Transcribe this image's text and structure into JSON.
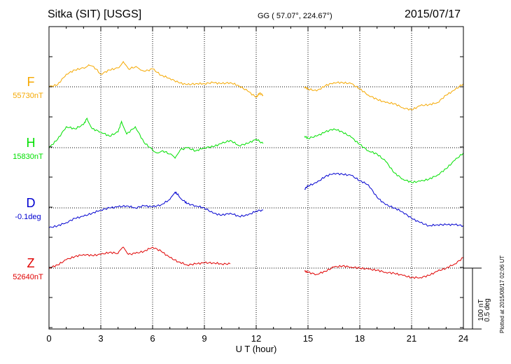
{
  "header": {
    "station": "Sitka (SIT)  [USGS]",
    "coords": "GG ( 57.07°, 224.67°)",
    "date": "2015/07/17"
  },
  "footer": {
    "plotted": "Plotted at 2015/08/17 02:06 UT"
  },
  "colors": {
    "F": "#f5a800",
    "H": "#00e000",
    "D": "#0000d0",
    "Z": "#e00000"
  },
  "chart_data": {
    "type": "line",
    "xlabel": "U T (hour)",
    "xlim": [
      0,
      24
    ],
    "xticks": [
      "0",
      "3",
      "6",
      "9",
      "12",
      "15",
      "18",
      "21",
      "24"
    ],
    "scale_bar": [
      "100 nT",
      "0.5 deg"
    ],
    "data_gap_hours": [
      12.4,
      14.8
    ],
    "series": [
      {
        "name": "F",
        "baseline": "55730nT",
        "values": [
          [
            [
              0,
              0
            ],
            [
              0.5,
              2
            ],
            [
              1,
              12
            ],
            [
              1.5,
              16
            ],
            [
              2,
              18
            ],
            [
              2.3,
              21
            ],
            [
              2.6,
              19
            ],
            [
              3,
              12
            ],
            [
              3.5,
              16
            ],
            [
              4,
              18
            ],
            [
              4.3,
              24
            ],
            [
              4.6,
              17
            ],
            [
              5,
              19
            ],
            [
              5.3,
              16
            ],
            [
              5.6,
              15
            ],
            [
              6,
              17
            ],
            [
              6.5,
              11
            ],
            [
              7,
              8
            ],
            [
              7.5,
              4
            ],
            [
              8,
              2
            ],
            [
              8.5,
              3
            ],
            [
              9,
              3
            ],
            [
              9.5,
              4
            ],
            [
              10,
              3
            ],
            [
              10.5,
              4
            ],
            [
              11,
              1
            ],
            [
              11.5,
              -4
            ],
            [
              12,
              -10
            ],
            [
              12.2,
              -6
            ],
            [
              12.4,
              -8
            ]
          ],
          [
            [
              14.8,
              0
            ],
            [
              15,
              -2
            ],
            [
              15.5,
              -4
            ],
            [
              16,
              1
            ],
            [
              16.5,
              4
            ],
            [
              17,
              4
            ],
            [
              17.5,
              3
            ],
            [
              18,
              -2
            ],
            [
              18.5,
              -8
            ],
            [
              19,
              -12
            ],
            [
              19.5,
              -15
            ],
            [
              20,
              -16
            ],
            [
              20.5,
              -20
            ],
            [
              21,
              -22
            ],
            [
              21.5,
              -18
            ],
            [
              22,
              -17
            ],
            [
              22.5,
              -15
            ],
            [
              23,
              -8
            ],
            [
              23.5,
              -3
            ],
            [
              24,
              3
            ]
          ]
        ]
      },
      {
        "name": "H",
        "baseline": "15830nT",
        "values": [
          [
            [
              0,
              0
            ],
            [
              0.5,
              8
            ],
            [
              1,
              20
            ],
            [
              1.5,
              18
            ],
            [
              2,
              22
            ],
            [
              2.2,
              28
            ],
            [
              2.5,
              18
            ],
            [
              3,
              15
            ],
            [
              3.5,
              11
            ],
            [
              4,
              15
            ],
            [
              4.2,
              25
            ],
            [
              4.5,
              13
            ],
            [
              5,
              20
            ],
            [
              5.5,
              5
            ],
            [
              6,
              -2
            ],
            [
              6.3,
              -5
            ],
            [
              6.6,
              -3
            ],
            [
              7,
              -6
            ],
            [
              7.3,
              -10
            ],
            [
              7.6,
              -2
            ],
            [
              8,
              0
            ],
            [
              8.5,
              -3
            ],
            [
              9,
              0
            ],
            [
              9.5,
              1
            ],
            [
              10,
              4
            ],
            [
              10.5,
              7
            ],
            [
              11,
              2
            ],
            [
              11.5,
              4
            ],
            [
              12,
              8
            ],
            [
              12.4,
              4
            ]
          ],
          [
            [
              14.8,
              11
            ],
            [
              15,
              9
            ],
            [
              15.5,
              11
            ],
            [
              16,
              15
            ],
            [
              16.5,
              18
            ],
            [
              17,
              15
            ],
            [
              17.5,
              10
            ],
            [
              18,
              3
            ],
            [
              18.5,
              -3
            ],
            [
              19,
              -6
            ],
            [
              19.5,
              -13
            ],
            [
              20,
              -24
            ],
            [
              20.5,
              -30
            ],
            [
              21,
              -33
            ],
            [
              21.5,
              -32
            ],
            [
              22,
              -30
            ],
            [
              22.5,
              -26
            ],
            [
              23,
              -20
            ],
            [
              23.5,
              -12
            ],
            [
              24,
              -5
            ]
          ]
        ]
      },
      {
        "name": "D",
        "baseline": "-0.1deg",
        "values": [
          [
            [
              0,
              -19
            ],
            [
              0.5,
              -17
            ],
            [
              1,
              -14
            ],
            [
              1.5,
              -10
            ],
            [
              2,
              -8
            ],
            [
              2.5,
              -5
            ],
            [
              3,
              -2
            ],
            [
              3.5,
              0
            ],
            [
              4,
              1
            ],
            [
              4.5,
              2
            ],
            [
              5,
              0
            ],
            [
              5.5,
              2
            ],
            [
              6,
              1
            ],
            [
              6.5,
              3
            ],
            [
              7,
              8
            ],
            [
              7.3,
              15
            ],
            [
              7.5,
              12
            ],
            [
              7.8,
              7
            ],
            [
              8,
              4
            ],
            [
              8.5,
              2
            ],
            [
              9,
              0
            ],
            [
              9.5,
              -5
            ],
            [
              10,
              -7
            ],
            [
              10.5,
              -5
            ],
            [
              11,
              -8
            ],
            [
              11.5,
              -7
            ],
            [
              12,
              -3
            ],
            [
              12.4,
              -2
            ]
          ],
          [
            [
              14.8,
              18
            ],
            [
              15,
              21
            ],
            [
              15.5,
              24
            ],
            [
              16,
              30
            ],
            [
              16.5,
              33
            ],
            [
              17,
              32
            ],
            [
              17.5,
              31
            ],
            [
              18,
              26
            ],
            [
              18.5,
              22
            ],
            [
              19,
              10
            ],
            [
              19.5,
              3
            ],
            [
              20,
              0
            ],
            [
              20.5,
              -4
            ],
            [
              21,
              -10
            ],
            [
              21.5,
              -14
            ],
            [
              22,
              -17
            ],
            [
              22.5,
              -16
            ],
            [
              23,
              -16
            ],
            [
              23.5,
              -16
            ],
            [
              24,
              -17
            ]
          ]
        ]
      },
      {
        "name": "Z",
        "baseline": "52640nT",
        "values": [
          [
            [
              0,
              0
            ],
            [
              0.5,
              3
            ],
            [
              1,
              8
            ],
            [
              1.5,
              11
            ],
            [
              2,
              13
            ],
            [
              2.5,
              12
            ],
            [
              3,
              13
            ],
            [
              3.5,
              15
            ],
            [
              4,
              14
            ],
            [
              4.3,
              20
            ],
            [
              4.6,
              13
            ],
            [
              5,
              14
            ],
            [
              5.5,
              16
            ],
            [
              6,
              20
            ],
            [
              6.5,
              16
            ],
            [
              7,
              10
            ],
            [
              7.5,
              6
            ],
            [
              8,
              3
            ],
            [
              8.5,
              4
            ],
            [
              9,
              5
            ],
            [
              9.5,
              5
            ],
            [
              10,
              4
            ],
            [
              10.5,
              4
            ]
          ],
          [
            [
              14.8,
              -3
            ],
            [
              15,
              -4
            ],
            [
              15.5,
              -6
            ],
            [
              16,
              -3
            ],
            [
              16.5,
              1
            ],
            [
              17,
              2
            ],
            [
              17.5,
              1
            ],
            [
              18,
              0
            ],
            [
              18.5,
              -1
            ],
            [
              19,
              -2
            ],
            [
              19.5,
              -4
            ],
            [
              20,
              -5
            ],
            [
              20.5,
              -7
            ],
            [
              21,
              -9
            ],
            [
              21.5,
              -9
            ],
            [
              22,
              -7
            ],
            [
              22.5,
              -3
            ],
            [
              23,
              0
            ],
            [
              23.5,
              4
            ],
            [
              24,
              10
            ]
          ]
        ]
      }
    ]
  }
}
